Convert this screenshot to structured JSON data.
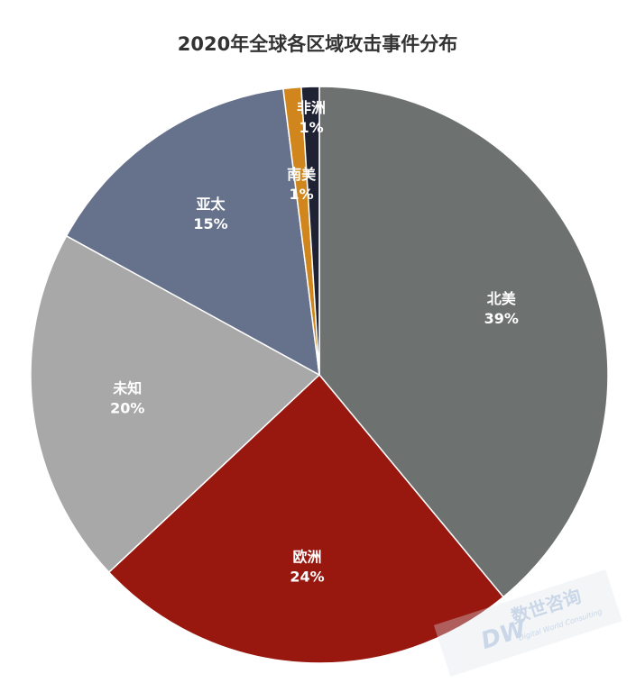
{
  "chart_data": {
    "type": "pie",
    "title": "2020年全球各区域攻击事件分布",
    "categories": [
      "北美",
      "欧洲",
      "未知",
      "亚太",
      "南美",
      "非洲"
    ],
    "values": [
      39,
      24,
      20,
      15,
      1,
      1
    ],
    "value_labels": [
      "39%",
      "24%",
      "20%",
      "15%",
      "1%",
      "1%"
    ],
    "colors": [
      "#6d716f",
      "#98170f",
      "#a8a8a8",
      "#66728c",
      "#d0861c",
      "#1e2233"
    ],
    "watermark": {
      "text": "数世咨询",
      "subtext": "Digital World Consulting",
      "logo": "DW"
    }
  }
}
